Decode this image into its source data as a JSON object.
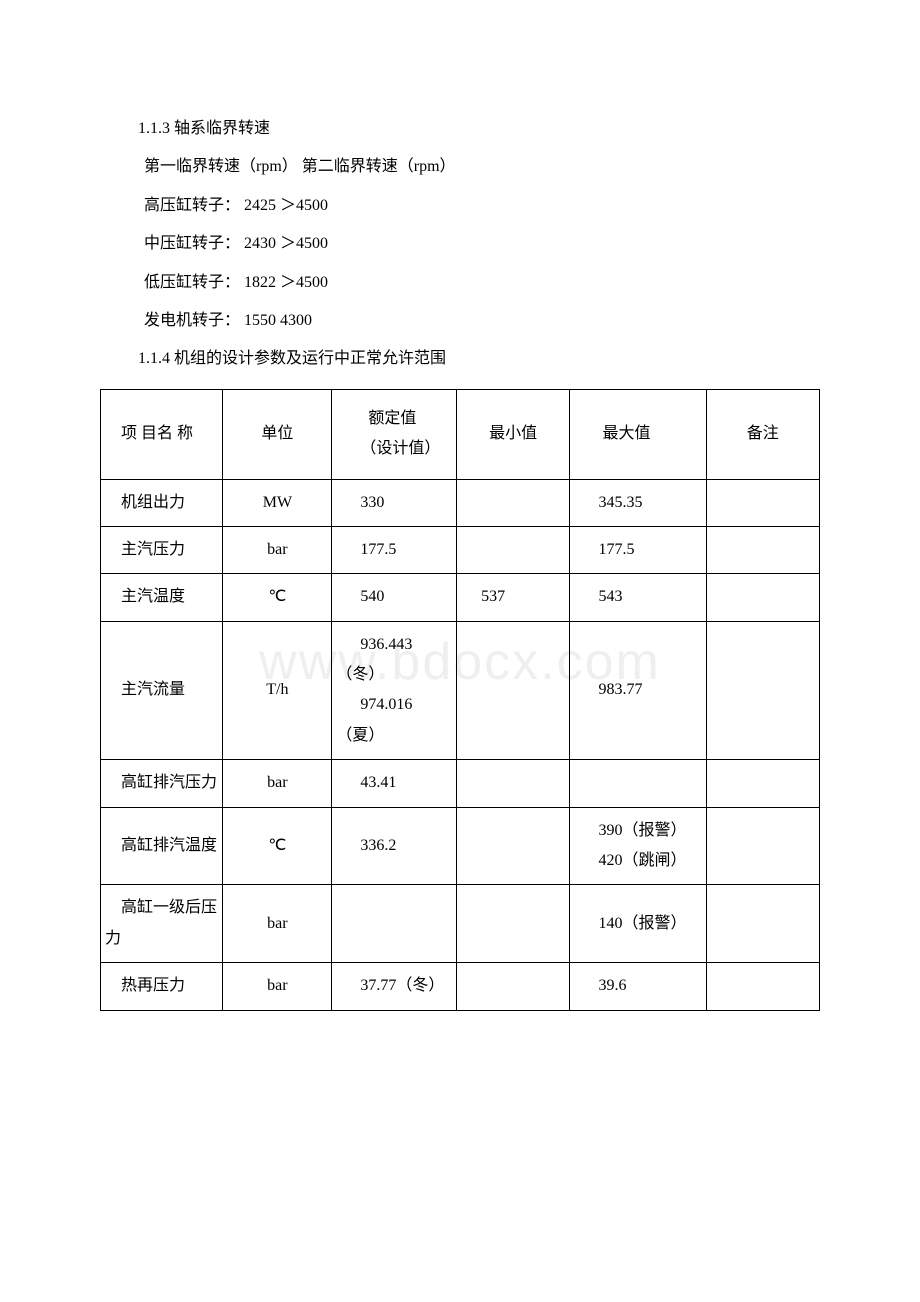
{
  "watermark": "www.bdocx.com",
  "section": {
    "heading1": "1.1.3 轴系临界转速",
    "lines": [
      " 第一临界转速（rpm） 第二临界转速（rpm）",
      " 高压缸转子： 2425 ＞4500",
      " 中压缸转子： 2430 ＞4500",
      " 低压缸转子：  1822  ＞4500",
      " 发电机转子： 1550   4300"
    ],
    "heading2": "1.1.4 机组的设计参数及运行中正常允许范围"
  },
  "table": {
    "headers": {
      "name": "项 目名 称",
      "unit": "单位",
      "rated": "额定值\n（设计值）",
      "min": "最小值",
      "max": "最大值",
      "note": "备注"
    },
    "rows": [
      {
        "name": "机组出力",
        "unit": "MW",
        "rated": "330",
        "min": "",
        "max": "345.35",
        "note": ""
      },
      {
        "name": "主汽压力",
        "unit": "bar",
        "rated": "177.5",
        "min": "",
        "max": "177.5",
        "note": ""
      },
      {
        "name": "主汽温度",
        "unit": "℃",
        "rated": "540",
        "min": "537",
        "max": "543",
        "note": ""
      },
      {
        "name": "主汽流量",
        "unit": "T/h",
        "rated": "936.443（冬）\n974.016（夏）",
        "min": "",
        "max": "983.77",
        "note": ""
      },
      {
        "name": "高缸排汽压力",
        "unit": "bar",
        "rated": "43.41",
        "min": "",
        "max": "",
        "note": ""
      },
      {
        "name": "高缸排汽温度",
        "unit": "℃",
        "rated": "336.2",
        "min": "",
        "max": "390（报警）\n420（跳闸）",
        "note": ""
      },
      {
        "name": "高缸一级后压力",
        "unit": "bar",
        "rated": "",
        "min": "",
        "max": "140（报警）",
        "note": ""
      },
      {
        "name": "热再压力",
        "unit": "bar",
        "rated": "37.77（冬）",
        "min": "",
        "max": "39.6",
        "note": ""
      }
    ],
    "style": {
      "border_color": "#000000",
      "font_size": 16,
      "background": "#ffffff"
    }
  }
}
